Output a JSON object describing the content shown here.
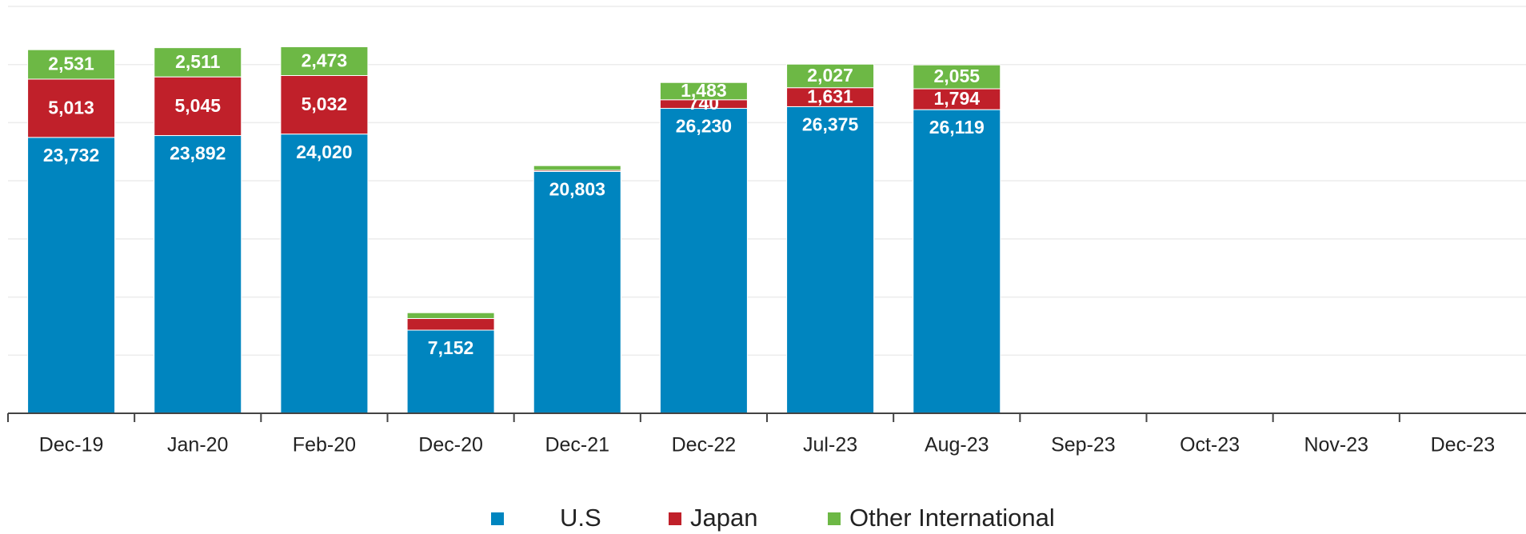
{
  "chart_data": {
    "type": "stacked_bar",
    "categories": [
      "Dec-19",
      "Jan-20",
      "Feb-20",
      "Dec-20",
      "Dec-21",
      "Dec-22",
      "Jul-23",
      "Aug-23",
      "Sep-23",
      "Oct-23",
      "Nov-23",
      "Dec-23"
    ],
    "series": [
      {
        "name": "U.S",
        "color": "#0085bf",
        "values": [
          23732,
          23892,
          24020,
          7152,
          20803,
          26230,
          26375,
          26119,
          null,
          null,
          null,
          null
        ],
        "value_labels": [
          "23,732",
          "23,892",
          "24,020",
          "7,152",
          "20,803",
          "26,230",
          "26,375",
          "26,119",
          null,
          null,
          null,
          null
        ]
      },
      {
        "name": "Japan",
        "color": "#c0202a",
        "values": [
          5013,
          5045,
          5032,
          1000,
          100,
          740,
          1631,
          1794,
          null,
          null,
          null,
          null
        ],
        "value_labels": [
          "5,013",
          "5,045",
          "5,032",
          null,
          null,
          "740",
          "1,631",
          "1,794",
          null,
          null,
          null,
          null
        ]
      },
      {
        "name": "Other International",
        "color": "#6db845",
        "values": [
          2531,
          2511,
          2473,
          500,
          400,
          1483,
          2027,
          2055,
          null,
          null,
          null,
          null
        ],
        "value_labels": [
          "2,531",
          "2,511",
          "2,473",
          null,
          null,
          "1,483",
          "2,027",
          "2,055",
          null,
          null,
          null,
          null
        ]
      }
    ],
    "ylim": [
      0,
      35000
    ],
    "yticks": [
      0,
      5000,
      10000,
      15000,
      20000,
      25000,
      30000,
      35000
    ],
    "grid": true
  }
}
